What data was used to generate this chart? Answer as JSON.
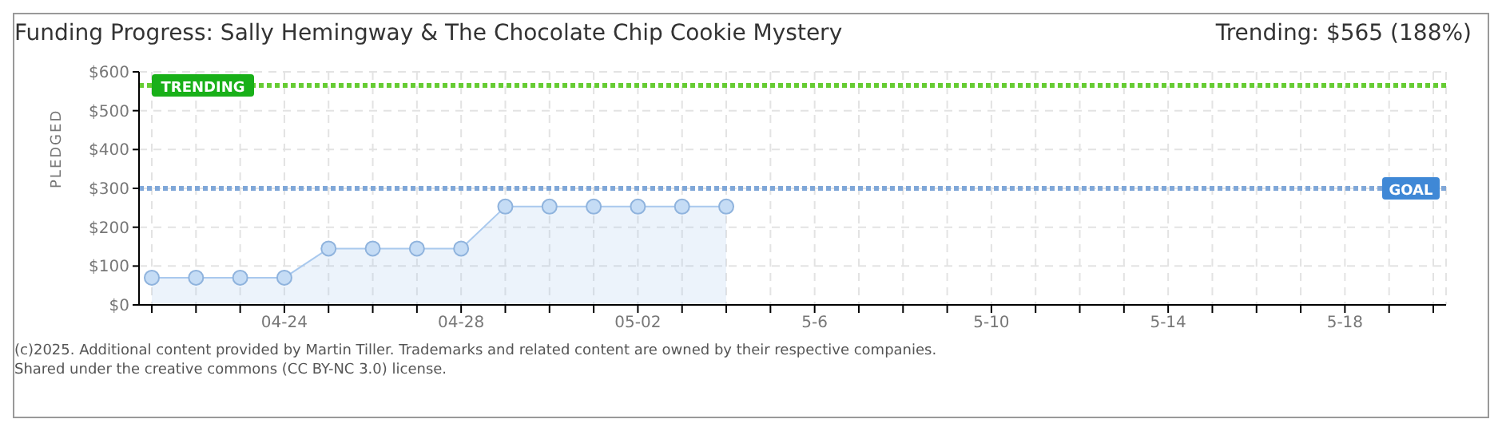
{
  "chart_data": {
    "type": "area",
    "title": "Funding Progress: Sally Hemingway & The Chocolate Chip Cookie Mystery",
    "ylabel": "PLEDGED",
    "categories": [
      null,
      null,
      null,
      "04-24",
      null,
      null,
      null,
      "04-28",
      null,
      null,
      null,
      "05-02",
      null,
      null,
      null,
      "5-6",
      null,
      null,
      null,
      "5-10",
      null,
      null,
      null,
      "5-14",
      null,
      null,
      null,
      "5-18",
      null,
      null
    ],
    "series": [
      {
        "color": "#a9c9ee",
        "values": [
          70,
          70,
          70,
          70,
          145,
          145,
          145,
          145,
          253,
          253,
          253,
          253,
          253,
          253,
          null,
          null,
          null,
          null,
          null,
          null,
          null,
          null,
          null,
          null,
          null,
          null,
          null,
          null,
          null,
          null
        ]
      }
    ],
    "ylim": [
      0,
      600
    ],
    "yticks": [
      {
        "value": 0,
        "label": "$0"
      },
      {
        "value": 100,
        "label": "$100"
      },
      {
        "value": 200,
        "label": "$200"
      },
      {
        "value": 300,
        "label": "$300"
      },
      {
        "value": 400,
        "label": "$400"
      },
      {
        "value": 500,
        "label": "$500"
      },
      {
        "value": 600,
        "label": "$600"
      }
    ],
    "ref_lines": [
      {
        "axis": "y",
        "value": 565,
        "label": "TRENDING",
        "color": "#66cc33",
        "line_style": "dotted"
      },
      {
        "axis": "y",
        "value": 300,
        "label": "GOAL",
        "color": "#7fa7d8",
        "line_style": "dotted"
      }
    ],
    "grid": true,
    "marker": "circle",
    "legend": false,
    "annotations": [
      "Trending: $565 (188%)",
      "(c)2025. Additional content provided by Martin Tiller. Trademarks and related content are owned by their respective companies.",
      "Shared under the creative commons (CC BY-NC 3.0) license."
    ]
  }
}
